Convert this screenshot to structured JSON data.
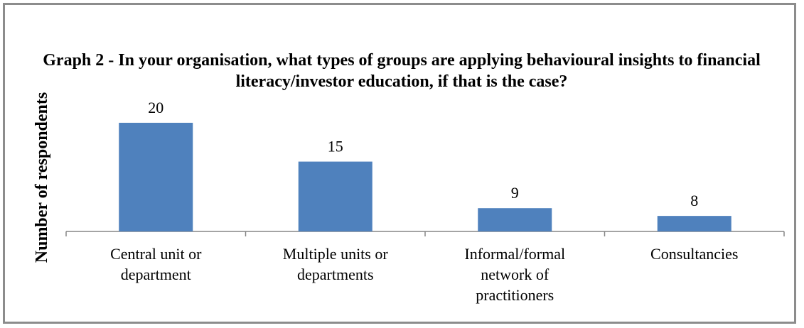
{
  "chart_data": {
    "type": "bar",
    "title": "Graph 2 - In your organisation, what types of groups are  applying behavioural insights to financial literacy/investor education, if that is the case?",
    "y_label": "Number of respondents",
    "categories": [
      "Central unit or department",
      "Multiple units or departments",
      "Informal/formal network of practitioners",
      "Consultancies"
    ],
    "values": [
      20,
      15,
      9,
      8
    ],
    "color": "#4f81bd",
    "ylim": [
      6,
      21
    ]
  }
}
